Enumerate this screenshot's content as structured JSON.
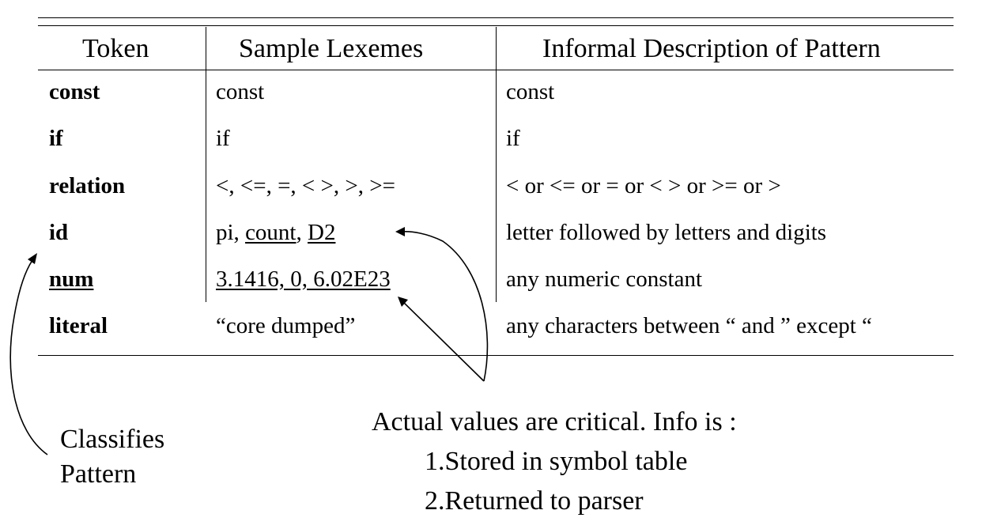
{
  "table": {
    "headers": [
      "Token",
      "Sample Lexemes",
      "Informal Description of Pattern"
    ],
    "rows": [
      {
        "token": "const",
        "lexemes": "const",
        "pattern": "const"
      },
      {
        "token": "if",
        "lexemes": "if",
        "pattern": "if"
      },
      {
        "token": "relation",
        "lexemes": "<, <=, =, < >, >, >=",
        "pattern": "< or <= or = or < > or >= or >"
      },
      {
        "token": "id",
        "lexemes": {
          "p1": "pi, ",
          "p2": "count",
          "p3": ", ",
          "p4": "D2"
        },
        "pattern": "letter followed by letters and digits"
      },
      {
        "token": "num",
        "lexemes": "3.1416,  0,  6.02E23",
        "pattern": "any numeric constant"
      },
      {
        "token": "literal",
        "lexemes": "“core dumped”",
        "pattern": "any characters between “ and ” except “"
      }
    ]
  },
  "annotations": {
    "classifies": [
      "Classifies",
      "Pattern"
    ],
    "actual": {
      "line1": "Actual values are critical.  Info is :",
      "line2": "1.Stored in symbol table",
      "line3": "2.Returned to parser"
    }
  }
}
